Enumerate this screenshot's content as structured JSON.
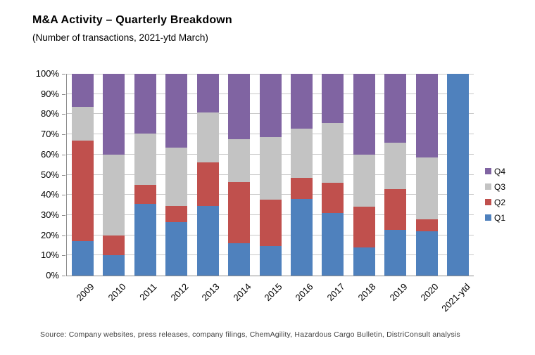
{
  "header": {
    "title": "M&A Activity – Quarterly Breakdown",
    "subtitle": "(Number of transactions, 2021-ytd March)"
  },
  "source": "Source: Company websites, press releases, company filings, ChemAgility, Hazardous Cargo Bulletin, DistriConsult analysis",
  "colors": {
    "q1_blue": "#4F81BD",
    "q2_red": "#C0504D",
    "q3_gray": "#C3C3C3",
    "q4_purple": "#8064A2",
    "gridline": "#C9C9C9",
    "axis": "#8C8C8C"
  },
  "chart_data": {
    "type": "bar",
    "stacked": true,
    "normalized_percent": true,
    "title": "M&A Activity – Quarterly Breakdown",
    "subtitle": "(Number of transactions, 2021-ytd March)",
    "xlabel": "",
    "ylabel": "",
    "ylim": [
      0,
      100
    ],
    "grid": true,
    "legend_position": "right",
    "categories": [
      "2009",
      "2010",
      "2011",
      "2012",
      "2013",
      "2014",
      "2015",
      "2016",
      "2017",
      "2018",
      "2019",
      "2020",
      "2021-ytd"
    ],
    "series": [
      {
        "name": "Q1",
        "color": "#4F81BD",
        "values": [
          17,
          10,
          35.5,
          26.5,
          34.5,
          16,
          14.5,
          38,
          31,
          14,
          22.5,
          22,
          100
        ]
      },
      {
        "name": "Q2",
        "color": "#C0504D",
        "values": [
          50,
          10,
          9.5,
          8,
          21.5,
          30.5,
          23,
          10.5,
          15,
          20,
          20.5,
          6,
          0
        ]
      },
      {
        "name": "Q3",
        "color": "#C3C3C3",
        "values": [
          16.5,
          40,
          25.5,
          29,
          25,
          21,
          31,
          24.5,
          29.5,
          26,
          23,
          30.5,
          0
        ]
      },
      {
        "name": "Q4",
        "color": "#8064A2",
        "values": [
          16.5,
          40,
          29.5,
          36.5,
          19,
          32.5,
          31.5,
          27,
          24.5,
          40,
          34,
          41.5,
          0
        ]
      }
    ],
    "y_ticks": [
      {
        "value": 100,
        "label": "100%"
      },
      {
        "value": 90,
        "label": "90%"
      },
      {
        "value": 80,
        "label": "80%"
      },
      {
        "value": 70,
        "label": "70%"
      },
      {
        "value": 60,
        "label": "60%"
      },
      {
        "value": 50,
        "label": "50%"
      },
      {
        "value": 40,
        "label": "40%"
      },
      {
        "value": 30,
        "label": "30%"
      },
      {
        "value": 20,
        "label": "20%"
      },
      {
        "value": 10,
        "label": "10%"
      },
      {
        "value": 0,
        "label": "0%"
      }
    ],
    "legend": [
      {
        "name": "Q4",
        "color": "#8064A2"
      },
      {
        "name": "Q3",
        "color": "#C3C3C3"
      },
      {
        "name": "Q2",
        "color": "#C0504D"
      },
      {
        "name": "Q1",
        "color": "#4F81BD"
      }
    ]
  }
}
